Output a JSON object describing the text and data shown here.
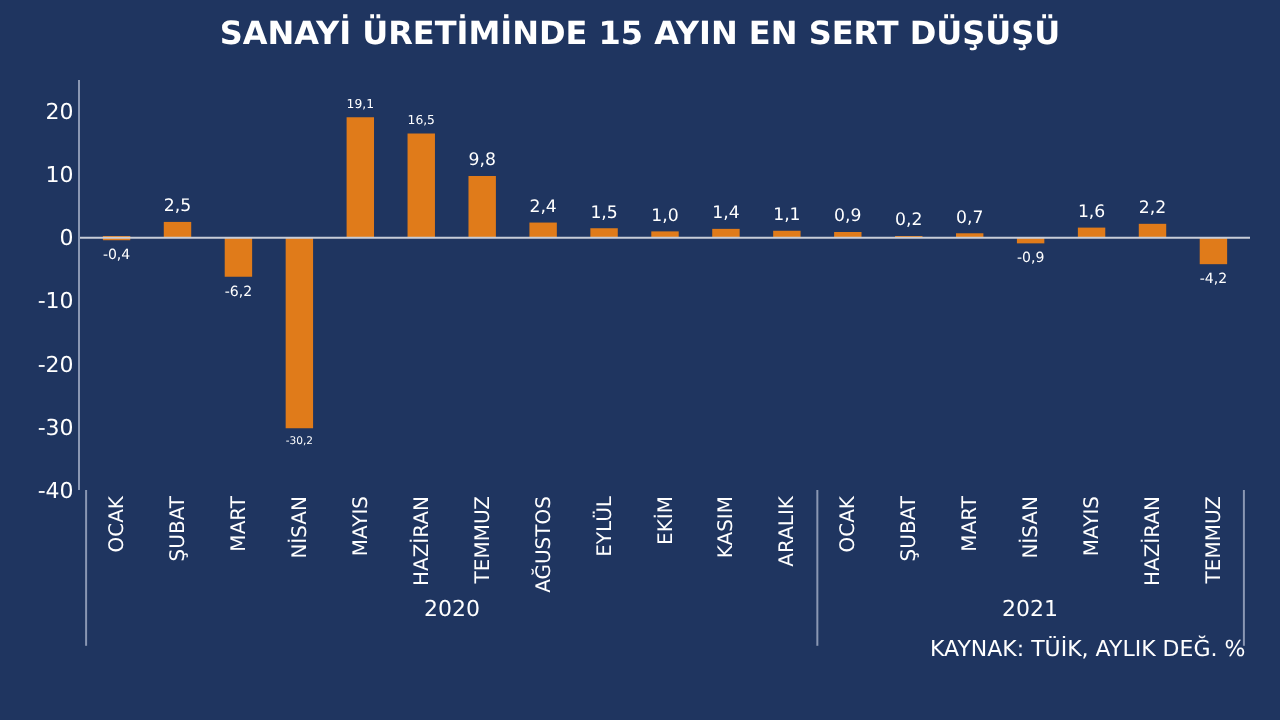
{
  "chart_data": {
    "type": "bar",
    "title": "SANAYİ ÜRETİMİNDE 15 AYIN EN SERT DÜŞÜŞÜ",
    "categories": [
      "OCAK",
      "ŞUBAT",
      "MART",
      "NİSAN",
      "MAYIS",
      "HAZİRAN",
      "TEMMUZ",
      "AĞUSTOS",
      "EYLÜL",
      "EKİM",
      "KASIM",
      "ARALIK",
      "OCAK",
      "ŞUBAT",
      "MART",
      "NİSAN",
      "MAYIS",
      "HAZİRAN",
      "TEMMUZ"
    ],
    "values": [
      -0.4,
      2.5,
      -6.2,
      -30.2,
      19.1,
      16.5,
      9.8,
      2.4,
      1.5,
      1.0,
      1.4,
      1.1,
      0.9,
      0.2,
      0.7,
      -0.9,
      1.6,
      2.2,
      -4.2
    ],
    "value_labels": [
      "-0,4",
      "2,5",
      "-6,2",
      "-30,2",
      "19,1",
      "16,5",
      "9,8",
      "2,4",
      "1,5",
      "1,0",
      "1,4",
      "1,1",
      "0,9",
      "0,2",
      "0,7",
      "-0,9",
      "1,6",
      "2,2",
      "-4,2"
    ],
    "color": "#e07b1a",
    "ylim": [
      -40,
      25
    ],
    "yticks": [
      -40,
      -30,
      -20,
      -10,
      0,
      10,
      20
    ],
    "grid": false,
    "legend": false,
    "ref_lines": [
      {
        "axis": "y",
        "value": 0,
        "color": "#c8cdd8"
      }
    ],
    "annotations": [
      "2020",
      "2021",
      "KAYNAK: TÜİK, AYLIK DEĞ. %"
    ]
  }
}
